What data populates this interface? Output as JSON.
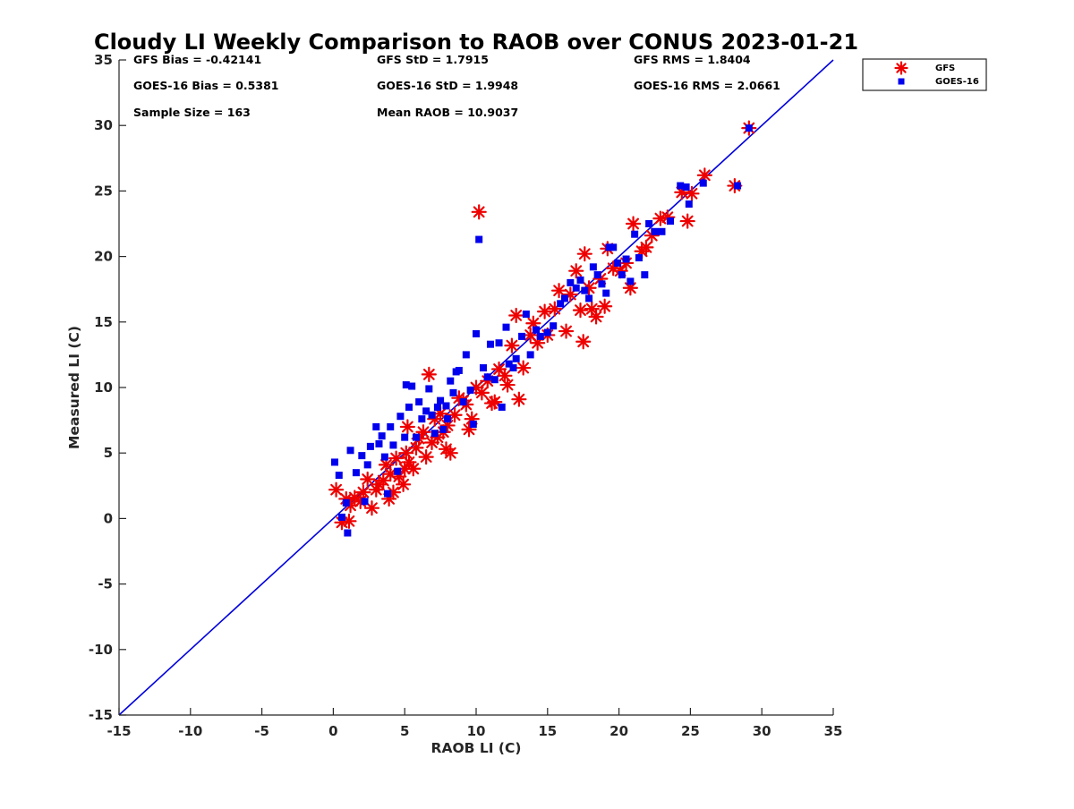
{
  "chart_data": {
    "type": "scatter",
    "title": "Cloudy LI Weekly Comparison to RAOB over CONUS 2023-01-21",
    "xlabel": "RAOB LI (C)",
    "ylabel": "Measured LI (C)",
    "xlim": [
      -15,
      35
    ],
    "ylim": [
      -15,
      35
    ],
    "xticks": [
      -15,
      -10,
      -5,
      0,
      5,
      10,
      15,
      20,
      25,
      30,
      35
    ],
    "yticks": [
      -15,
      -10,
      -5,
      0,
      5,
      10,
      15,
      20,
      25,
      30,
      35
    ],
    "grid": false,
    "legend_position": "outside-top-right",
    "reference_line": {
      "from": [
        -15,
        -15
      ],
      "to": [
        35,
        35
      ],
      "color": "#0000dd"
    },
    "stats": {
      "gfs_bias": "GFS Bias = -0.42141",
      "goes_bias": "GOES-16 Bias = 0.5381",
      "sample_size": "Sample Size = 163",
      "gfs_std": "GFS StD = 1.7915",
      "goes_std": "GOES-16 StD = 1.9948",
      "mean_raob": "Mean RAOB = 10.9037",
      "gfs_rms": "GFS RMS = 1.8404",
      "goes_rms": "GOES-16 RMS = 2.0661"
    },
    "series": [
      {
        "name": "GFS",
        "marker": "asterisk",
        "color": "#ee0000",
        "points": [
          [
            0.2,
            2.2
          ],
          [
            0.6,
            -0.3
          ],
          [
            0.9,
            1.5
          ],
          [
            1.1,
            -0.2
          ],
          [
            1.2,
            1.0
          ],
          [
            1.5,
            1.6
          ],
          [
            1.9,
            1.3
          ],
          [
            2.1,
            2.0
          ],
          [
            2.4,
            3.0
          ],
          [
            2.7,
            0.8
          ],
          [
            3.0,
            2.2
          ],
          [
            3.2,
            2.6
          ],
          [
            3.5,
            2.9
          ],
          [
            3.7,
            4.1
          ],
          [
            3.9,
            1.5
          ],
          [
            4.0,
            3.4
          ],
          [
            4.2,
            2.0
          ],
          [
            4.4,
            4.6
          ],
          [
            4.6,
            3.2
          ],
          [
            4.9,
            2.6
          ],
          [
            5.0,
            3.8
          ],
          [
            5.1,
            5.0
          ],
          [
            5.2,
            7.0
          ],
          [
            5.3,
            4.3
          ],
          [
            5.6,
            3.8
          ],
          [
            5.8,
            5.4
          ],
          [
            6.0,
            6.1
          ],
          [
            6.3,
            6.6
          ],
          [
            6.5,
            4.7
          ],
          [
            6.7,
            11.0
          ],
          [
            6.9,
            5.8
          ],
          [
            7.1,
            7.6
          ],
          [
            7.3,
            6.2
          ],
          [
            7.5,
            8.0
          ],
          [
            7.7,
            6.6
          ],
          [
            7.9,
            5.3
          ],
          [
            8.0,
            7.1
          ],
          [
            8.2,
            5.0
          ],
          [
            8.5,
            7.9
          ],
          [
            8.8,
            9.2
          ],
          [
            9.1,
            9.0
          ],
          [
            9.3,
            8.7
          ],
          [
            9.5,
            6.8
          ],
          [
            9.7,
            7.6
          ],
          [
            10.0,
            10.0
          ],
          [
            10.2,
            23.4
          ],
          [
            10.4,
            9.6
          ],
          [
            10.8,
            10.5
          ],
          [
            11.1,
            8.8
          ],
          [
            11.3,
            8.9
          ],
          [
            11.6,
            11.4
          ],
          [
            12.0,
            10.9
          ],
          [
            12.2,
            10.2
          ],
          [
            12.5,
            13.2
          ],
          [
            12.8,
            15.5
          ],
          [
            13.0,
            9.1
          ],
          [
            13.3,
            11.5
          ],
          [
            13.8,
            14.0
          ],
          [
            14.0,
            14.9
          ],
          [
            14.3,
            13.4
          ],
          [
            14.8,
            15.8
          ],
          [
            15.0,
            14.0
          ],
          [
            15.5,
            16.0
          ],
          [
            15.8,
            17.4
          ],
          [
            16.3,
            14.3
          ],
          [
            16.6,
            17.1
          ],
          [
            17.0,
            18.9
          ],
          [
            17.3,
            15.9
          ],
          [
            17.5,
            13.5
          ],
          [
            17.6,
            20.2
          ],
          [
            17.9,
            17.6
          ],
          [
            18.1,
            16.0
          ],
          [
            18.4,
            15.4
          ],
          [
            18.7,
            18.3
          ],
          [
            19.0,
            16.2
          ],
          [
            19.2,
            20.6
          ],
          [
            19.6,
            19.1
          ],
          [
            20.1,
            18.9
          ],
          [
            20.5,
            19.5
          ],
          [
            20.8,
            17.6
          ],
          [
            21.0,
            22.5
          ],
          [
            21.6,
            20.4
          ],
          [
            21.9,
            20.7
          ],
          [
            22.3,
            21.6
          ],
          [
            22.9,
            22.9
          ],
          [
            23.4,
            23.0
          ],
          [
            24.4,
            24.9
          ],
          [
            24.8,
            22.7
          ],
          [
            25.1,
            24.8
          ],
          [
            26.0,
            26.2
          ],
          [
            28.1,
            25.4
          ],
          [
            29.1,
            29.8
          ]
        ]
      },
      {
        "name": "GOES-16",
        "marker": "square",
        "color": "#0000ee",
        "points": [
          [
            0.1,
            4.3
          ],
          [
            0.4,
            3.3
          ],
          [
            0.6,
            0.1
          ],
          [
            0.9,
            1.2
          ],
          [
            1.0,
            -1.1
          ],
          [
            1.2,
            5.2
          ],
          [
            1.6,
            3.5
          ],
          [
            2.0,
            4.8
          ],
          [
            2.2,
            1.3
          ],
          [
            2.4,
            4.1
          ],
          [
            2.6,
            5.5
          ],
          [
            3.0,
            7.0
          ],
          [
            3.2,
            5.7
          ],
          [
            3.4,
            6.3
          ],
          [
            3.6,
            4.7
          ],
          [
            3.8,
            1.9
          ],
          [
            4.0,
            7.0
          ],
          [
            4.2,
            5.6
          ],
          [
            4.5,
            3.6
          ],
          [
            4.7,
            7.8
          ],
          [
            5.0,
            6.2
          ],
          [
            5.1,
            10.2
          ],
          [
            5.3,
            8.5
          ],
          [
            5.5,
            10.1
          ],
          [
            5.8,
            6.2
          ],
          [
            6.0,
            8.9
          ],
          [
            6.2,
            7.6
          ],
          [
            6.5,
            8.2
          ],
          [
            6.7,
            9.9
          ],
          [
            6.9,
            7.9
          ],
          [
            7.1,
            6.5
          ],
          [
            7.3,
            8.5
          ],
          [
            7.5,
            9.0
          ],
          [
            7.7,
            6.8
          ],
          [
            7.9,
            8.6
          ],
          [
            8.0,
            7.6
          ],
          [
            8.2,
            10.5
          ],
          [
            8.4,
            9.6
          ],
          [
            8.6,
            11.2
          ],
          [
            8.8,
            11.3
          ],
          [
            9.1,
            8.9
          ],
          [
            9.3,
            12.5
          ],
          [
            9.6,
            9.8
          ],
          [
            9.8,
            7.2
          ],
          [
            10.0,
            14.1
          ],
          [
            10.2,
            21.3
          ],
          [
            10.5,
            11.5
          ],
          [
            10.8,
            10.8
          ],
          [
            11.0,
            13.3
          ],
          [
            11.3,
            10.6
          ],
          [
            11.6,
            13.4
          ],
          [
            11.8,
            8.5
          ],
          [
            12.1,
            14.6
          ],
          [
            12.3,
            11.8
          ],
          [
            12.6,
            11.5
          ],
          [
            12.8,
            12.2
          ],
          [
            13.2,
            13.9
          ],
          [
            13.5,
            15.6
          ],
          [
            13.8,
            12.5
          ],
          [
            14.2,
            14.4
          ],
          [
            14.5,
            13.9
          ],
          [
            15.0,
            14.2
          ],
          [
            15.4,
            14.7
          ],
          [
            15.9,
            16.4
          ],
          [
            16.2,
            16.8
          ],
          [
            16.6,
            18.0
          ],
          [
            17.0,
            17.6
          ],
          [
            17.3,
            18.2
          ],
          [
            17.6,
            17.4
          ],
          [
            17.9,
            16.8
          ],
          [
            18.2,
            19.2
          ],
          [
            18.5,
            18.6
          ],
          [
            18.8,
            17.9
          ],
          [
            19.1,
            17.2
          ],
          [
            19.3,
            20.7
          ],
          [
            19.6,
            20.7
          ],
          [
            19.9,
            19.5
          ],
          [
            20.2,
            18.6
          ],
          [
            20.5,
            19.8
          ],
          [
            20.8,
            18.1
          ],
          [
            21.1,
            21.7
          ],
          [
            21.4,
            19.9
          ],
          [
            21.8,
            18.6
          ],
          [
            22.1,
            22.5
          ],
          [
            22.5,
            21.9
          ],
          [
            23.0,
            21.9
          ],
          [
            23.6,
            22.7
          ],
          [
            24.3,
            25.4
          ],
          [
            24.7,
            25.3
          ],
          [
            24.9,
            24.0
          ],
          [
            25.9,
            25.6
          ],
          [
            28.3,
            25.4
          ],
          [
            29.1,
            29.8
          ]
        ]
      }
    ]
  }
}
